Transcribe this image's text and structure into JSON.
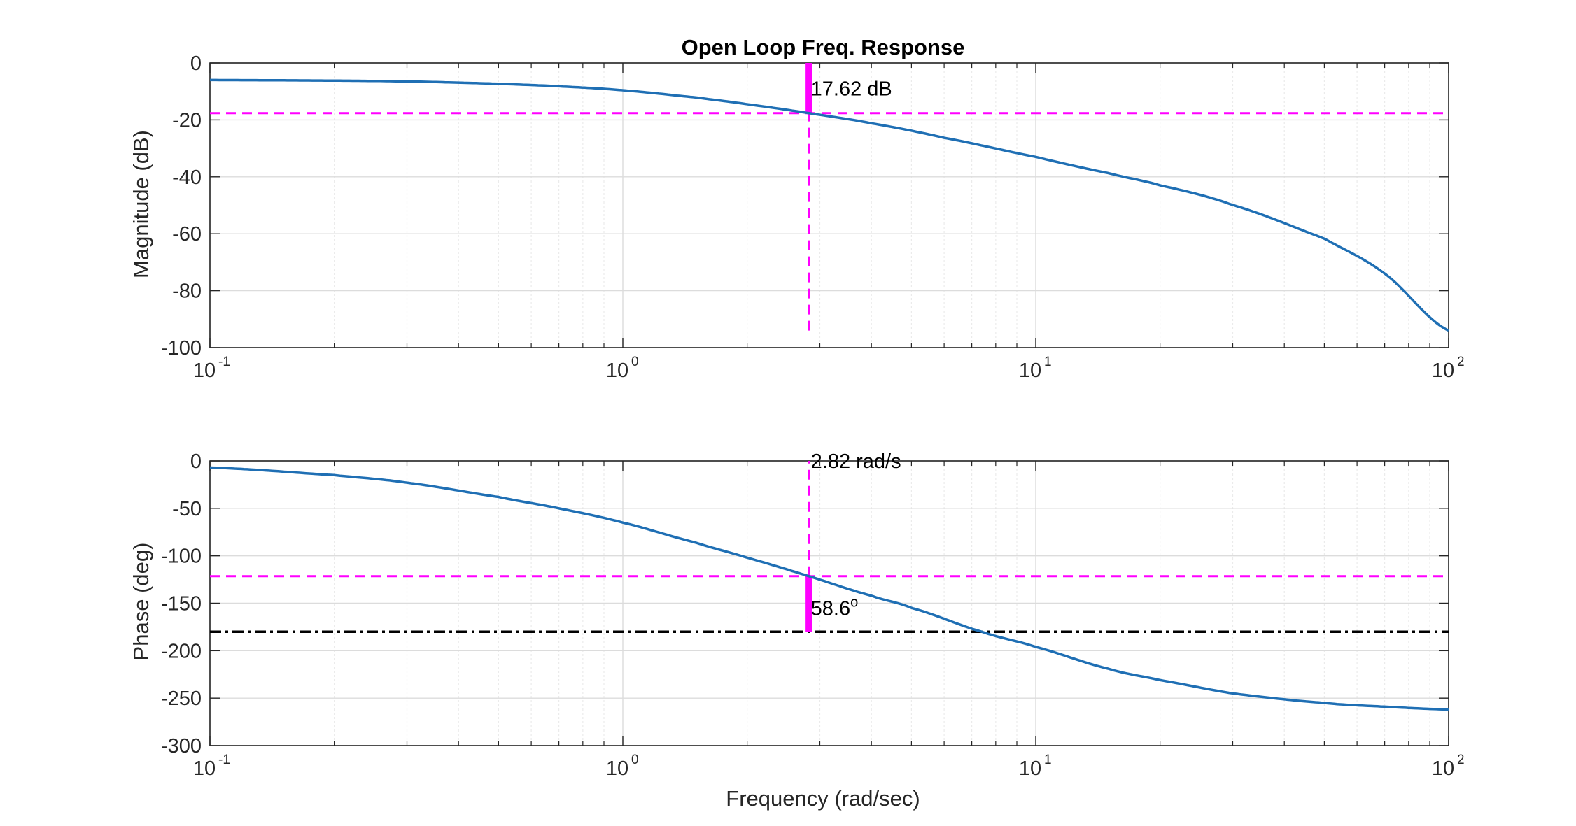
{
  "chart_data": [
    {
      "type": "line",
      "title": "Open Loop Freq. Response",
      "xlabel": "",
      "ylabel": "Magnitude (dB)",
      "xscale": "log",
      "xlim": [
        0.1,
        100
      ],
      "ylim": [
        -100,
        0
      ],
      "yticks": [
        0,
        -20,
        -40,
        -60,
        -80,
        -100
      ],
      "xticks": [
        {
          "value": 0.1,
          "base": "10",
          "exp": "-1"
        },
        {
          "value": 1,
          "base": "10",
          "exp": "0"
        },
        {
          "value": 10,
          "base": "10",
          "exp": "1"
        },
        {
          "value": 100,
          "base": "10",
          "exp": "2"
        }
      ],
      "grid": true,
      "series": [
        {
          "color": "#1f6fb4",
          "x": [
            0.1,
            0.2,
            0.3,
            0.5,
            0.7,
            1.0,
            1.5,
            2.0,
            2.82,
            4.0,
            6.0,
            10,
            15,
            20,
            30,
            50,
            70,
            100
          ],
          "y": [
            -6.0,
            -6.2,
            -6.5,
            -7.3,
            -8.2,
            -9.6,
            -12.1,
            -14.5,
            -17.62,
            -21.2,
            -26.3,
            -33.0,
            -38.7,
            -43.0,
            -49.9,
            -61.7,
            -74.0,
            -94.0
          ]
        }
      ],
      "reference_lines": {
        "color": "#ff00ff",
        "horizontal_y": -17.62,
        "vertical_x": 2.82,
        "vertical_y_range": [
          -94,
          0
        ]
      },
      "margin_bar": {
        "color": "#ff00ff",
        "x": 2.82,
        "y_from": -17.62,
        "y_to": 0
      },
      "annotations": [
        {
          "text": "17.62 dB",
          "x": 2.82,
          "y": -9
        }
      ]
    },
    {
      "type": "line",
      "title": "",
      "xlabel": "Frequency (rad/sec)",
      "ylabel": "Phase (deg)",
      "xscale": "log",
      "xlim": [
        0.1,
        100
      ],
      "ylim": [
        -300,
        0
      ],
      "yticks": [
        0,
        -50,
        -100,
        -150,
        -200,
        -250,
        -300
      ],
      "xticks": [
        {
          "value": 0.1,
          "base": "10",
          "exp": "-1"
        },
        {
          "value": 1,
          "base": "10",
          "exp": "0"
        },
        {
          "value": 10,
          "base": "10",
          "exp": "1"
        },
        {
          "value": 100,
          "base": "10",
          "exp": "2"
        }
      ],
      "grid": true,
      "series": [
        {
          "color": "#1f6fb4",
          "x": [
            0.1,
            0.2,
            0.3,
            0.5,
            0.7,
            1.0,
            1.5,
            2.0,
            2.82,
            4.0,
            5.0,
            7.4,
            10,
            15,
            20,
            30,
            50,
            70,
            100
          ],
          "y": [
            -7,
            -15,
            -23,
            -38,
            -50,
            -65,
            -86,
            -102,
            -121.4,
            -142,
            -155,
            -180,
            -196,
            -219,
            -231,
            -245,
            -255,
            -259,
            -262
          ]
        }
      ],
      "reference_lines": {
        "color": "#ff00ff",
        "horizontal_y": -121.4,
        "vertical_x": 2.82,
        "vertical_y_range": [
          -121.4,
          0
        ]
      },
      "critical_line": {
        "color": "#000000",
        "y": -180
      },
      "margin_bar": {
        "color": "#ff00ff",
        "x": 2.82,
        "y_from": -180,
        "y_to": -121.4
      },
      "annotations": [
        {
          "text": "2.82 rad/s",
          "x": 2.82,
          "y": 0
        },
        {
          "text": "58.6",
          "sup": "o",
          "x": 2.82,
          "y": -155
        }
      ]
    }
  ]
}
